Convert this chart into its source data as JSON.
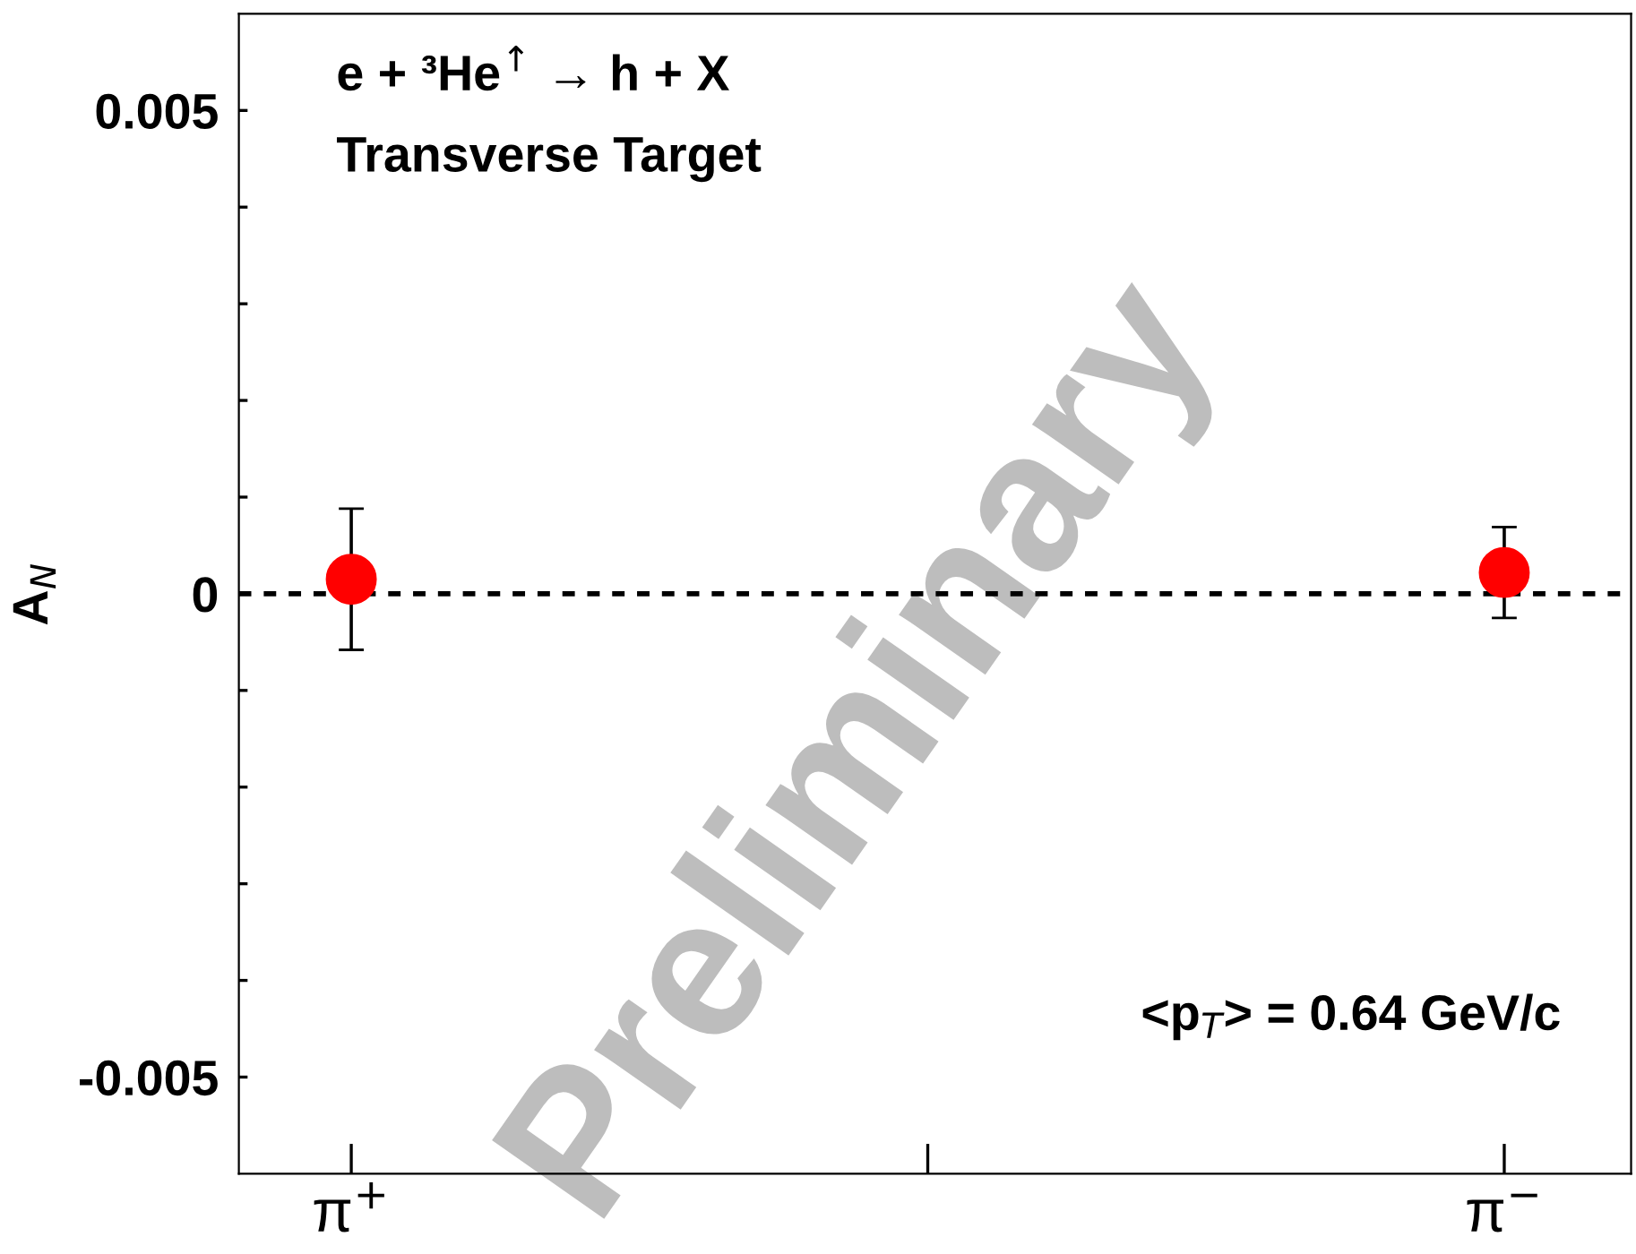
{
  "chart_data": {
    "type": "scatter",
    "ylabel": "A$_{N}$",
    "categories": [
      "π$^{+}$",
      null,
      "π$^{−}$"
    ],
    "series": [
      {
        "color": "#ff0000",
        "values": [
          0.00015,
          null,
          0.00022
        ],
        "errors": [
          0.00073,
          null,
          0.00047
        ]
      }
    ],
    "ylim": [
      -0.006,
      0.006
    ],
    "yticks": [
      {
        "value": -0.005,
        "label": "-0.005"
      },
      {
        "value": -0.004,
        "label": null
      },
      {
        "value": -0.003,
        "label": null
      },
      {
        "value": -0.002,
        "label": null
      },
      {
        "value": -0.001,
        "label": null
      },
      0,
      {
        "value": 0.001,
        "label": null
      },
      {
        "value": 0.002,
        "label": null
      },
      {
        "value": 0.003,
        "label": null
      },
      {
        "value": 0.004,
        "label": null
      },
      {
        "value": 0.005,
        "label": "0.005"
      }
    ],
    "marker": "circle",
    "grid": false,
    "ref_lines": [
      {
        "axis": "y",
        "value": 0,
        "color": "#000000",
        "line_style": "dotted"
      }
    ],
    "annotations": [
      "e + ³He$^{↑}$ → h + X",
      "Transverse Target",
      "<p$_{T}$> = 0.64 GeV/c",
      "Preliminary"
    ]
  }
}
